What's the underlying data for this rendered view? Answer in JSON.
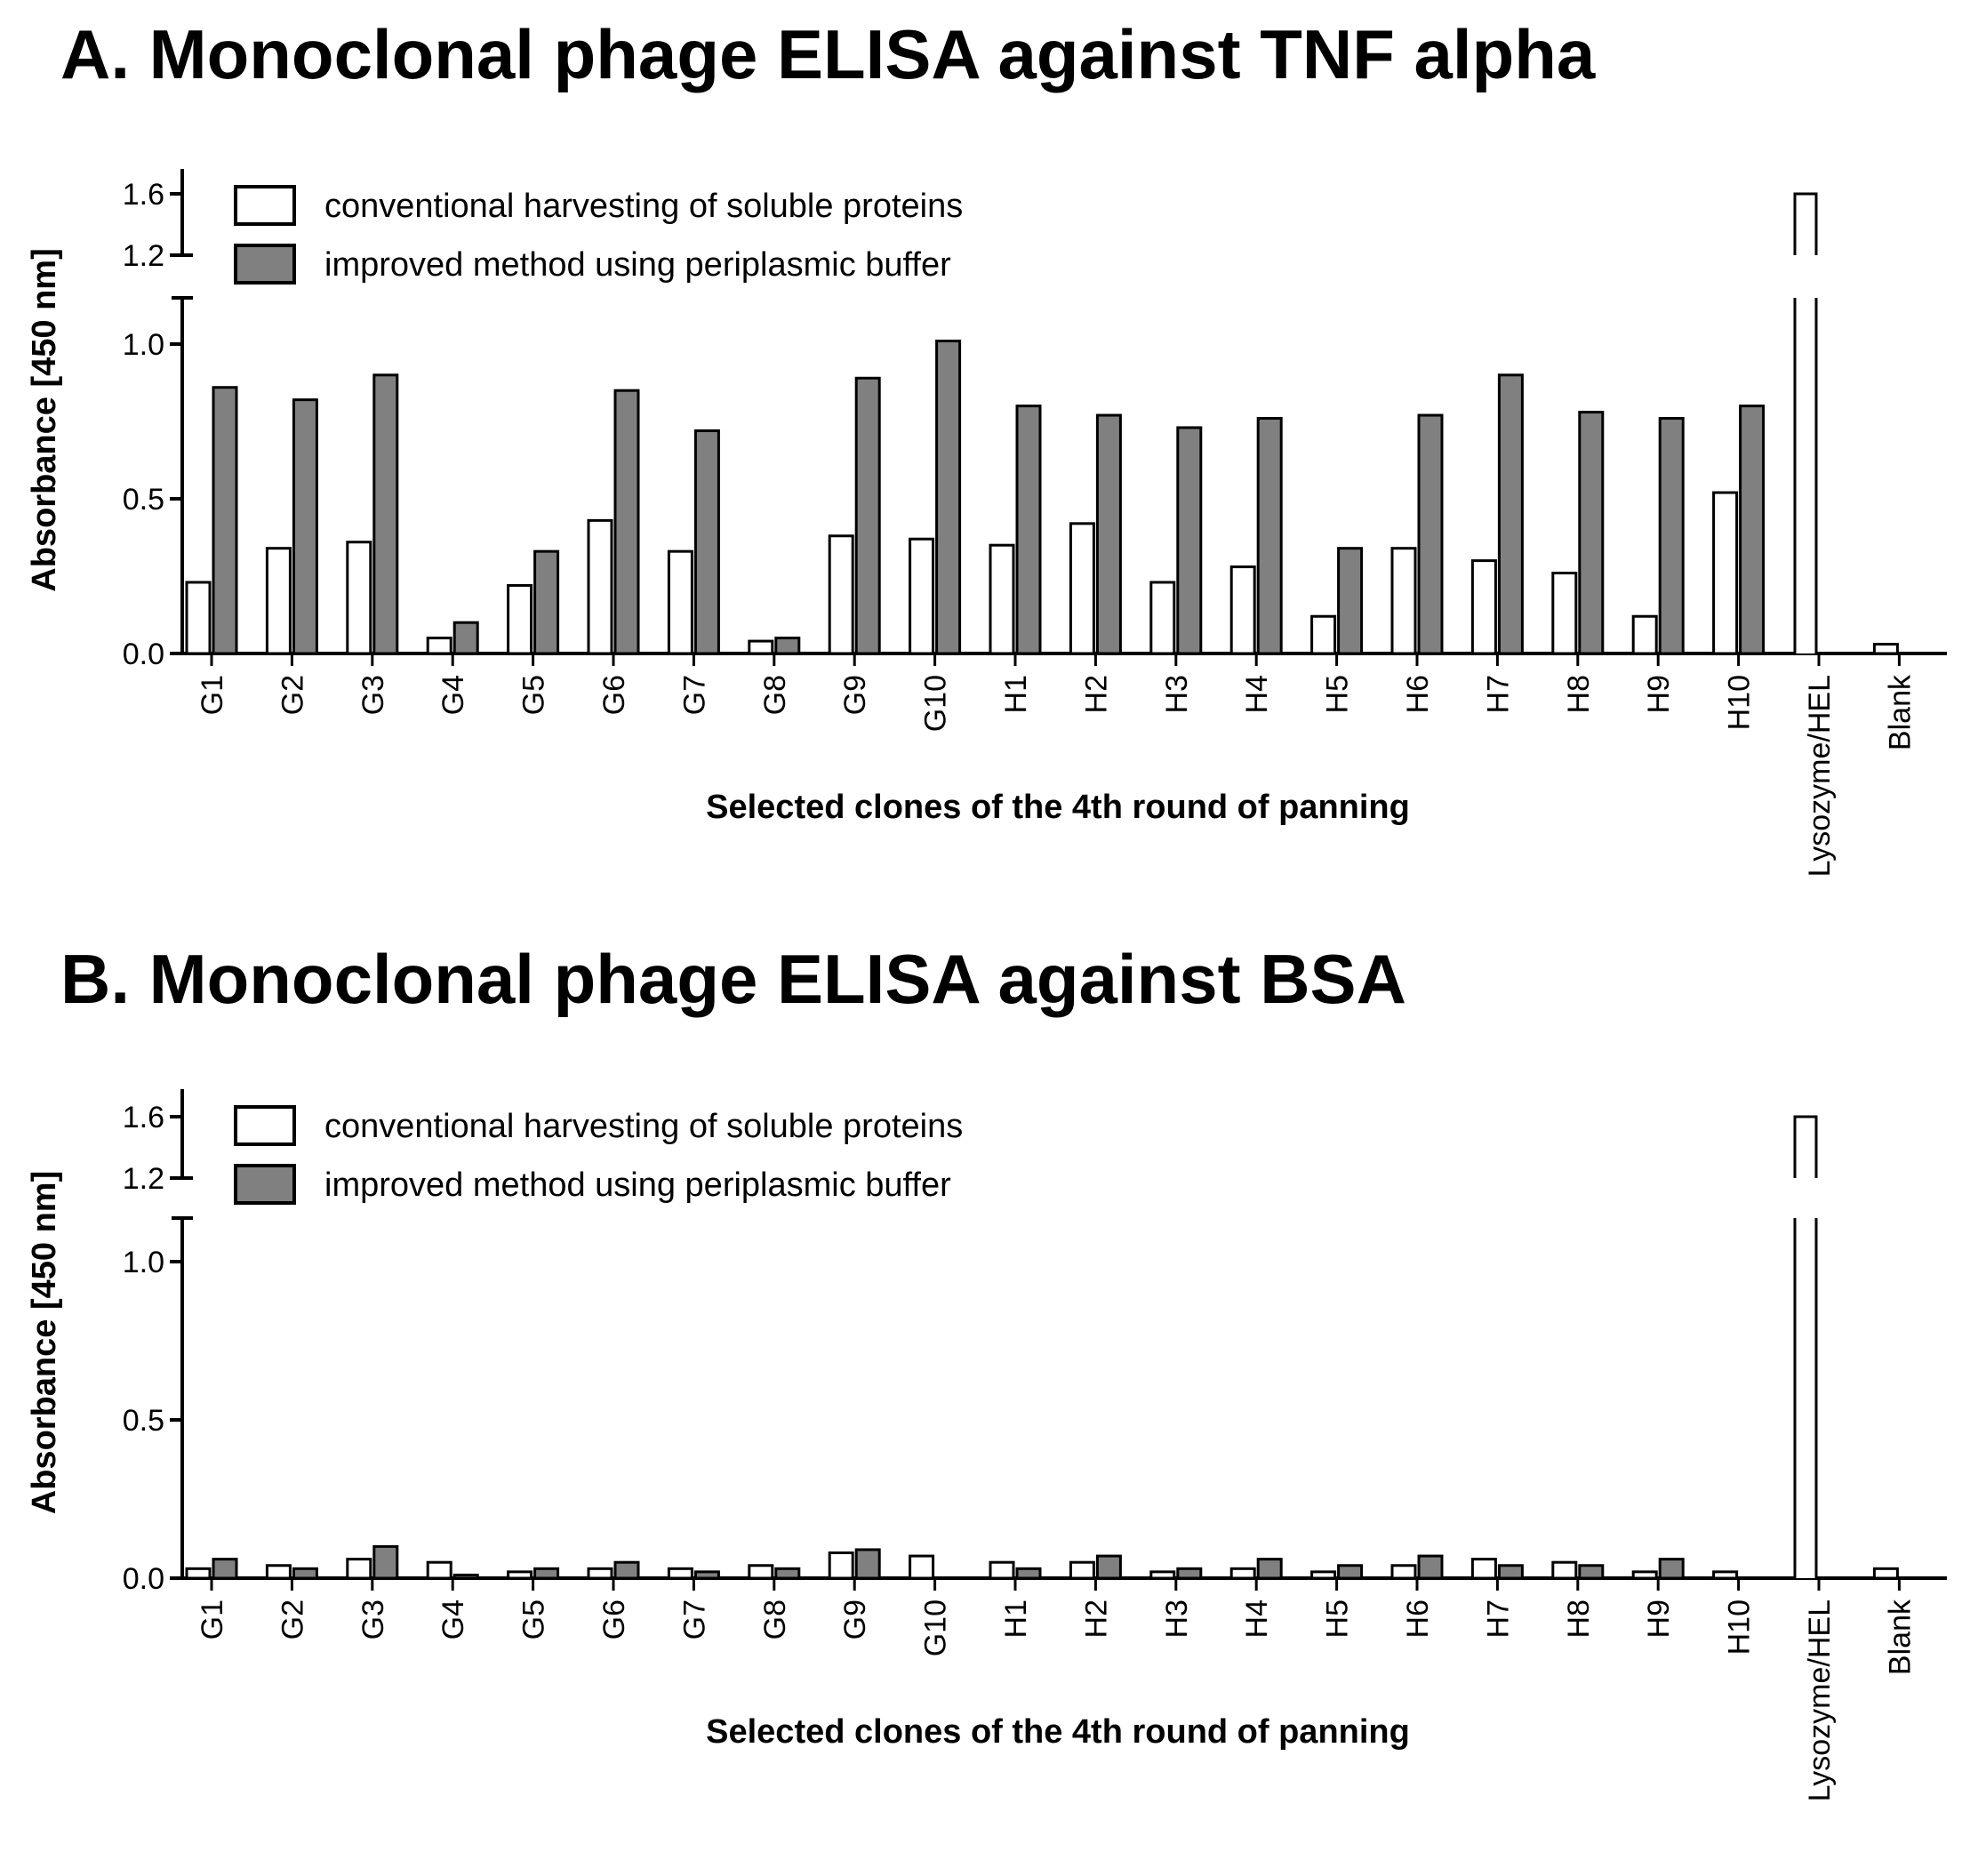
{
  "chart_data": [
    {
      "type": "bar",
      "title": "A. Monoclonal phage ELISA against TNF alpha",
      "xlabel": "Selected clones of the 4th round of panning",
      "ylabel": "Absorbance [450 nm]",
      "ylim": [
        0,
        1.7
      ],
      "axis_break": [
        1.15,
        1.2
      ],
      "yticks": [
        "0.0",
        "0.5",
        "1.0",
        "1.2",
        "1.6"
      ],
      "grid": false,
      "legend_position": "top-left",
      "categories": [
        "G1",
        "G2",
        "G3",
        "G4",
        "G5",
        "G6",
        "G7",
        "G8",
        "G9",
        "G10",
        "H1",
        "H2",
        "H3",
        "H4",
        "H5",
        "H6",
        "H7",
        "H8",
        "H9",
        "H10",
        "Lysozyme/HEL",
        "Blank"
      ],
      "series": [
        {
          "name": "conventional harvesting of soluble proteins",
          "color": "#ffffff",
          "values": [
            0.23,
            0.34,
            0.36,
            0.05,
            0.22,
            0.43,
            0.33,
            0.04,
            0.38,
            0.37,
            0.35,
            0.42,
            0.23,
            0.28,
            0.12,
            0.34,
            0.3,
            0.26,
            0.12,
            0.52,
            1.6,
            0.03
          ]
        },
        {
          "name": "improved method using periplasmic buffer",
          "color": "#808080",
          "values": [
            0.86,
            0.82,
            0.9,
            0.1,
            0.33,
            0.85,
            0.72,
            0.05,
            0.89,
            1.01,
            0.8,
            0.77,
            0.73,
            0.76,
            0.34,
            0.77,
            0.9,
            0.78,
            0.76,
            0.8,
            null,
            null
          ]
        }
      ]
    },
    {
      "type": "bar",
      "title": "B. Monoclonal phage ELISA against BSA",
      "xlabel": "Selected clones of the 4th round of panning",
      "ylabel": "Absorbance [450 nm]",
      "ylim": [
        0,
        1.7
      ],
      "axis_break": [
        1.15,
        1.2
      ],
      "yticks": [
        "0.0",
        "0.5",
        "1.0",
        "1.2",
        "1.6"
      ],
      "grid": false,
      "legend_position": "top-left",
      "categories": [
        "G1",
        "G2",
        "G3",
        "G4",
        "G5",
        "G6",
        "G7",
        "G8",
        "G9",
        "G10",
        "H1",
        "H2",
        "H3",
        "H4",
        "H5",
        "H6",
        "H7",
        "H8",
        "H9",
        "H10",
        "Lysozyme/HEL",
        "Blank"
      ],
      "series": [
        {
          "name": "conventional harvesting of soluble proteins",
          "color": "#ffffff",
          "values": [
            0.03,
            0.04,
            0.06,
            0.05,
            0.02,
            0.03,
            0.03,
            0.04,
            0.08,
            0.07,
            0.05,
            0.05,
            0.02,
            0.03,
            0.02,
            0.04,
            0.06,
            0.05,
            0.02,
            0.02,
            1.6,
            0.03
          ]
        },
        {
          "name": "improved method using periplasmic buffer",
          "color": "#808080",
          "values": [
            0.06,
            0.03,
            0.1,
            0.01,
            0.03,
            0.05,
            0.02,
            0.03,
            0.09,
            null,
            0.03,
            0.07,
            0.03,
            0.06,
            0.04,
            0.07,
            0.04,
            0.04,
            0.06,
            null,
            null,
            null
          ]
        }
      ]
    }
  ]
}
